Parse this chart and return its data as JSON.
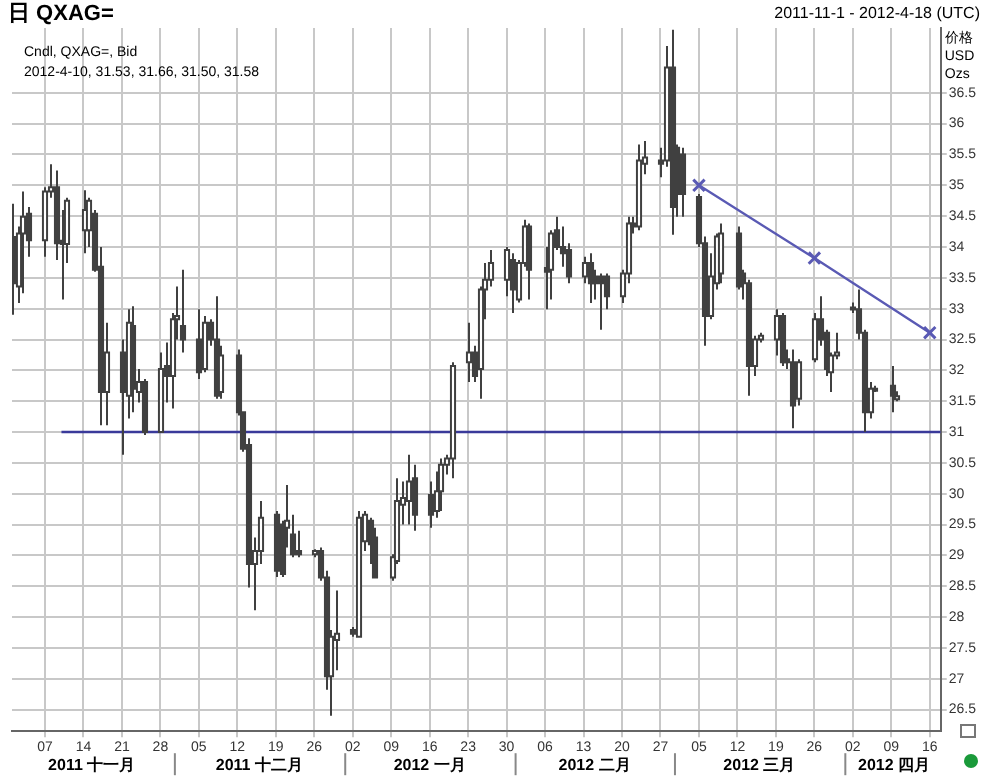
{
  "chart_data": {
    "type": "candlestick",
    "title": "日 QXAG=",
    "subtitle": "2011-11-1 - 2012-4-18 (UTC)",
    "ylabel": "价格 USD Ozs",
    "annotations": [
      "Cndl, QXAG=, Bid",
      "2012-4-10, 31.53, 31.66, 31.50, 31.58",
      "2011 十一月",
      "2011 十二月",
      "2012 一月",
      "2012 二月",
      "2012 三月",
      "2012 四月"
    ],
    "color": "#404040",
    "colors": [
      "#404040",
      "#ffffff",
      "#ffffff",
      "#404040",
      "#ffffff",
      "#ffffff",
      "#404040",
      "#404040",
      "#ffffff",
      "#ffffff",
      "#ffffff",
      "#404040",
      "#404040",
      "#ffffff",
      "#404040",
      "#ffffff",
      "#404040",
      "#ffffff",
      "#404040",
      "#ffffff",
      "#404040",
      "#ffffff",
      "#ffffff",
      "#404040",
      "#404040",
      "#ffffff",
      "#404040",
      "#404040",
      "#ffffff",
      "#404040",
      "#404040",
      "#404040",
      "#ffffff",
      "#ffffff",
      "#404040",
      "#404040",
      "#ffffff",
      "#404040",
      "#404040",
      "#ffffff",
      "#404040",
      "#404040",
      "#ffffff",
      "#ffffff",
      "#404040",
      "#ffffff",
      "#ffffff",
      "#404040",
      "#404040",
      "#ffffff",
      "#ffffff",
      "#ffffff",
      "#ffffff",
      "#404040",
      "#404040",
      "#ffffff",
      "#ffffff",
      "#ffffff",
      "#ffffff",
      "#ffffff",
      "#404040",
      "#ffffff",
      "#ffffff",
      "#ffffff",
      "#ffffff",
      "#404040",
      "#ffffff",
      "#ffffff",
      "#404040",
      "#404040",
      "#ffffff",
      "#404040",
      "#404040",
      "#404040",
      "#ffffff",
      "#404040",
      "#404040",
      "#404040",
      "#404040",
      "#ffffff",
      "#ffffff",
      "#404040",
      "#ffffff",
      "#ffffff",
      "#404040",
      "#ffffff",
      "#404040",
      "#404040",
      "#404040",
      "#404040",
      "#404040",
      "#ffffff",
      "#ffffff",
      "#ffffff",
      "#404040",
      "#404040",
      "#404040",
      "#ffffff",
      "#ffffff",
      "#ffffff",
      "#404040",
      "#404040",
      "#404040",
      "#ffffff",
      "#ffffff",
      "#404040",
      "#404040",
      "#ffffff",
      "#ffffff",
      "#ffffff",
      "#404040",
      "#404040",
      "#ffffff",
      "#404040",
      "#404040",
      "#ffffff"
    ],
    "x": [
      "2011-11-01",
      "2011-11-02",
      "2011-11-03",
      "2011-11-04",
      "2011-11-07",
      "2011-11-08",
      "2011-11-09",
      "2011-11-10",
      "2011-11-11",
      "2011-11-14",
      "2011-11-15",
      "2011-11-16",
      "2011-11-17",
      "2011-11-18",
      "2011-11-21",
      "2011-11-22",
      "2011-11-23",
      "2011-11-24",
      "2011-11-25",
      "2011-11-28",
      "2011-11-29",
      "2011-11-30",
      "2011-12-01",
      "2011-12-02",
      "2011-12-05",
      "2011-12-06",
      "2011-12-07",
      "2011-12-08",
      "2011-12-09",
      "2011-12-12",
      "2011-12-13",
      "2011-12-14",
      "2011-12-15",
      "2011-12-16",
      "2011-12-19",
      "2011-12-20",
      "2011-12-21",
      "2011-12-22",
      "2011-12-23",
      "2011-12-26",
      "2011-12-27",
      "2011-12-28",
      "2011-12-29",
      "2011-12-30",
      "2012-01-02",
      "2012-01-03",
      "2012-01-04",
      "2012-01-05",
      "2012-01-06",
      "2012-01-09",
      "2012-01-10",
      "2012-01-11",
      "2012-01-12",
      "2012-01-13",
      "2012-01-16",
      "2012-01-17",
      "2012-01-18",
      "2012-01-19",
      "2012-01-20",
      "2012-01-23",
      "2012-01-24",
      "2012-01-25",
      "2012-01-26",
      "2012-01-27",
      "2012-01-30",
      "2012-01-31",
      "2012-02-01",
      "2012-02-02",
      "2012-02-03",
      "2012-02-06",
      "2012-02-07",
      "2012-02-08",
      "2012-02-09",
      "2012-02-10",
      "2012-02-13",
      "2012-02-14",
      "2012-02-15",
      "2012-02-16",
      "2012-02-17",
      "2012-02-20",
      "2012-02-21",
      "2012-02-22",
      "2012-02-23",
      "2012-02-24",
      "2012-02-27",
      "2012-02-28",
      "2012-02-29",
      "2012-03-01",
      "2012-03-02",
      "2012-03-05",
      "2012-03-06",
      "2012-03-07",
      "2012-03-08",
      "2012-03-09",
      "2012-03-12",
      "2012-03-13",
      "2012-03-14",
      "2012-03-15",
      "2012-03-16",
      "2012-03-19",
      "2012-03-20",
      "2012-03-21",
      "2012-03-22",
      "2012-03-23",
      "2012-03-26",
      "2012-03-27",
      "2012-03-28",
      "2012-03-29",
      "2012-03-30",
      "2012-04-02",
      "2012-04-03",
      "2012-04-04",
      "2012-04-05",
      "2012-04-06",
      "2012-04-09",
      "2012-04-10"
    ],
    "ohlc": [
      [
        34.16,
        34.7,
        32.9,
        33.41
      ],
      [
        33.36,
        34.33,
        33.09,
        34.22
      ],
      [
        34.22,
        34.9,
        33.25,
        34.49
      ],
      [
        34.54,
        34.65,
        33.84,
        34.11
      ],
      [
        34.11,
        34.97,
        33.84,
        34.9
      ],
      [
        34.9,
        35.34,
        34.8,
        34.97
      ],
      [
        34.97,
        35.24,
        33.79,
        34.06
      ],
      [
        34.1,
        34.6,
        33.15,
        34.05
      ],
      [
        34.05,
        34.8,
        33.74,
        34.75
      ],
      [
        34.27,
        34.92,
        33.9,
        34.6
      ],
      [
        34.27,
        34.8,
        34.0,
        34.75
      ],
      [
        34.54,
        34.6,
        33.6,
        33.63
      ],
      [
        33.68,
        34.0,
        31.11,
        31.65
      ],
      [
        31.65,
        32.77,
        31.11,
        32.29
      ],
      [
        32.29,
        32.5,
        30.63,
        31.65
      ],
      [
        31.59,
        32.99,
        31.22,
        32.77
      ],
      [
        32.72,
        33.04,
        31.32,
        31.7
      ],
      [
        31.65,
        32.02,
        31.48,
        31.81
      ],
      [
        31.81,
        31.86,
        30.95,
        31.0
      ],
      [
        31.0,
        32.29,
        31.0,
        32.02
      ],
      [
        32.07,
        32.45,
        31.48,
        31.91
      ],
      [
        31.91,
        32.93,
        31.38,
        32.83
      ],
      [
        32.83,
        33.36,
        32.5,
        32.88
      ],
      [
        32.72,
        33.63,
        32.29,
        32.5
      ],
      [
        32.5,
        32.99,
        31.86,
        31.97
      ],
      [
        32.02,
        32.88,
        31.97,
        32.77
      ],
      [
        32.77,
        32.83,
        32.4,
        32.5
      ],
      [
        32.5,
        33.2,
        31.54,
        31.59
      ],
      [
        31.65,
        32.4,
        31.54,
        32.24
      ],
      [
        32.24,
        32.34,
        31.27,
        31.32
      ],
      [
        31.32,
        31.32,
        30.68,
        30.73
      ],
      [
        30.79,
        30.9,
        28.48,
        28.86
      ],
      [
        28.86,
        29.29,
        28.11,
        29.07
      ],
      [
        29.07,
        29.88,
        28.86,
        29.61
      ],
      [
        29.66,
        29.72,
        28.65,
        28.75
      ],
      [
        29.5,
        29.56,
        28.65,
        28.7
      ],
      [
        29.45,
        30.14,
        29.13,
        29.56
      ],
      [
        29.34,
        29.66,
        28.97,
        29.02
      ],
      [
        29.07,
        29.4,
        28.97,
        29.02
      ],
      [
        29.02,
        29.1,
        28.97,
        29.07
      ],
      [
        29.07,
        29.13,
        28.59,
        28.64
      ],
      [
        28.64,
        28.75,
        26.82,
        27.04
      ],
      [
        27.04,
        27.79,
        26.4,
        27.68
      ],
      [
        27.63,
        28.43,
        27.14,
        27.73
      ],
      [
        27.79,
        27.84,
        27.68,
        27.73
      ],
      [
        27.68,
        29.72,
        27.68,
        29.61
      ],
      [
        29.23,
        29.72,
        29.07,
        29.66
      ],
      [
        29.56,
        29.61,
        28.86,
        29.18
      ],
      [
        29.29,
        29.45,
        28.64,
        28.64
      ],
      [
        28.64,
        29.02,
        28.59,
        28.97
      ],
      [
        28.91,
        30.25,
        28.86,
        29.88
      ],
      [
        29.82,
        30.2,
        29.5,
        29.93
      ],
      [
        29.88,
        30.63,
        29.5,
        30.2
      ],
      [
        30.25,
        30.47,
        29.4,
        29.66
      ],
      [
        29.98,
        30.2,
        29.45,
        29.66
      ],
      [
        29.72,
        30.36,
        29.61,
        30.04
      ],
      [
        30.04,
        30.57,
        29.72,
        30.47
      ],
      [
        30.47,
        30.63,
        30.31,
        30.57
      ],
      [
        30.57,
        32.13,
        30.25,
        32.07
      ],
      [
        32.13,
        32.77,
        31.81,
        32.29
      ],
      [
        32.29,
        32.4,
        31.81,
        31.91
      ],
      [
        32.02,
        33.36,
        31.54,
        33.31
      ],
      [
        33.31,
        33.74,
        32.83,
        33.47
      ],
      [
        33.47,
        33.95,
        33.36,
        33.74
      ],
      [
        33.47,
        34.0,
        33.2,
        33.95
      ],
      [
        33.79,
        33.9,
        32.93,
        33.31
      ],
      [
        33.15,
        33.79,
        33.1,
        33.74
      ],
      [
        33.74,
        34.44,
        33.68,
        34.33
      ],
      [
        34.33,
        34.38,
        33.15,
        33.63
      ],
      [
        33.66,
        34.0,
        32.99,
        33.6
      ],
      [
        33.63,
        34.27,
        33.15,
        34.22
      ],
      [
        34.27,
        34.49,
        33.95,
        34.0
      ],
      [
        34.0,
        34.33,
        33.68,
        33.9
      ],
      [
        33.95,
        34.06,
        33.41,
        33.52
      ],
      [
        33.52,
        33.84,
        33.41,
        33.74
      ],
      [
        33.74,
        33.9,
        33.09,
        33.41
      ],
      [
        33.52,
        33.63,
        33.15,
        33.41
      ],
      [
        33.52,
        33.57,
        32.66,
        33.41
      ],
      [
        33.52,
        33.57,
        32.99,
        33.2
      ],
      [
        33.2,
        33.63,
        33.09,
        33.57
      ],
      [
        33.57,
        34.49,
        33.41,
        34.38
      ],
      [
        34.38,
        34.49,
        34.22,
        34.33
      ],
      [
        34.33,
        35.66,
        34.27,
        35.4
      ],
      [
        35.35,
        35.72,
        35.18,
        35.45
      ],
      [
        35.4,
        35.61,
        35.13,
        35.35
      ],
      [
        35.4,
        37.26,
        35.3,
        36.91
      ],
      [
        36.91,
        37.52,
        34.2,
        34.65
      ],
      [
        35.61,
        35.66,
        34.49,
        34.86
      ],
      [
        35.5,
        35.61,
        34.49,
        34.86
      ],
      [
        34.81,
        34.86,
        34.0,
        34.06
      ],
      [
        34.06,
        34.17,
        32.4,
        32.88
      ],
      [
        32.88,
        33.9,
        32.83,
        33.52
      ],
      [
        33.41,
        34.22,
        33.31,
        34.17
      ],
      [
        33.57,
        34.38,
        33.41,
        34.22
      ],
      [
        34.22,
        34.33,
        33.31,
        33.36
      ],
      [
        33.57,
        33.63,
        33.15,
        33.41
      ],
      [
        33.41,
        33.47,
        31.59,
        32.07
      ],
      [
        32.07,
        32.56,
        31.91,
        32.5
      ],
      [
        32.5,
        32.61,
        32.45,
        32.56
      ],
      [
        32.5,
        32.99,
        32.24,
        32.88
      ],
      [
        32.88,
        32.93,
        32.07,
        32.13
      ],
      [
        32.18,
        32.34,
        32.02,
        32.13
      ],
      [
        32.13,
        32.34,
        31.06,
        31.43
      ],
      [
        31.54,
        32.18,
        31.43,
        32.13
      ],
      [
        32.18,
        32.93,
        32.13,
        32.83
      ],
      [
        32.83,
        33.2,
        32.4,
        32.5
      ],
      [
        32.61,
        32.66,
        31.91,
        32.02
      ],
      [
        31.97,
        32.29,
        31.65,
        32.24
      ],
      [
        32.24,
        32.61,
        32.18,
        32.29
      ],
      [
        33.0,
        33.1,
        32.93,
        33.02
      ],
      [
        32.99,
        33.31,
        32.5,
        32.61
      ],
      [
        32.61,
        32.66,
        31.0,
        31.32
      ],
      [
        31.32,
        31.81,
        31.22,
        31.7
      ],
      [
        31.7,
        31.75,
        31.65,
        31.68
      ],
      [
        31.75,
        32.07,
        31.32,
        31.59
      ],
      [
        31.53,
        31.66,
        31.5,
        31.58
      ]
    ],
    "series": [
      {
        "type": "line",
        "color": "#5a5ab4",
        "marker": "cross",
        "x": [
          "2012-03-05",
          "2012-03-26",
          "2012-04-16"
        ],
        "values": [
          35.0,
          33.82,
          32.61
        ]
      },
      {
        "type": "line",
        "color": "#3a3a9a",
        "marker": "none",
        "x": [
          "2011-11-10",
          "2012-04-18"
        ],
        "values": [
          31,
          31
        ]
      }
    ],
    "xlim": [
      "2011-11-01",
      "2012-04-18"
    ],
    "xticks": [
      {
        "value": "2011-11-07",
        "label": "07"
      },
      {
        "value": "2011-11-14",
        "label": "14"
      },
      {
        "value": "2011-11-21",
        "label": "21"
      },
      {
        "value": "2011-11-28",
        "label": "28"
      },
      {
        "value": "2011-12-05",
        "label": "05"
      },
      {
        "value": "2011-12-12",
        "label": "12"
      },
      {
        "value": "2011-12-19",
        "label": "19"
      },
      {
        "value": "2011-12-26",
        "label": "26"
      },
      {
        "value": "2012-01-02",
        "label": "02"
      },
      {
        "value": "2012-01-09",
        "label": "09"
      },
      {
        "value": "2012-01-16",
        "label": "16"
      },
      {
        "value": "2012-01-23",
        "label": "23"
      },
      {
        "value": "2012-01-30",
        "label": "30"
      },
      {
        "value": "2012-02-06",
        "label": "06"
      },
      {
        "value": "2012-02-13",
        "label": "13"
      },
      {
        "value": "2012-02-20",
        "label": "20"
      },
      {
        "value": "2012-02-27",
        "label": "27"
      },
      {
        "value": "2012-03-05",
        "label": "05"
      },
      {
        "value": "2012-03-12",
        "label": "12"
      },
      {
        "value": "2012-03-19",
        "label": "19"
      },
      {
        "value": "2012-03-26",
        "label": "26"
      },
      {
        "value": "2012-04-02",
        "label": "02"
      },
      {
        "value": "2012-04-09",
        "label": "09"
      },
      {
        "value": "2012-04-16",
        "label": "16"
      }
    ],
    "ylim": [
      26.15,
      37.55
    ],
    "yticks": [
      26.5,
      27,
      27.5,
      28,
      28.5,
      29,
      29.5,
      30,
      30.5,
      31,
      31.5,
      32,
      32.5,
      33,
      33.5,
      34,
      34.5,
      35,
      35.5,
      36,
      36.5
    ],
    "grid": true,
    "legend": false
  }
}
